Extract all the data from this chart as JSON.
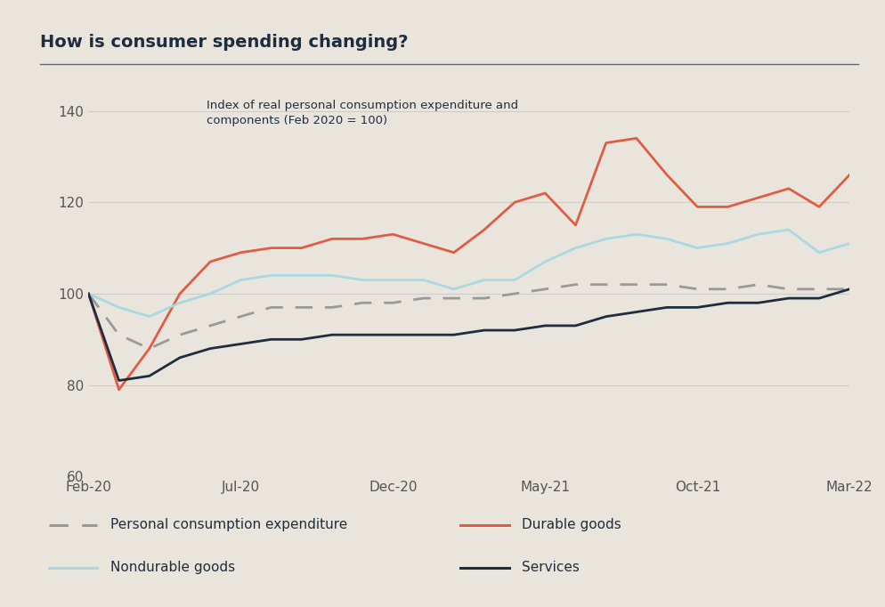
{
  "title": "How is consumer spending changing?",
  "subtitle": "Index of real personal consumption expenditure and\ncomponents (Feb 2020 = 100)",
  "background_color": "#eae5dc",
  "title_color": "#1e2d3d",
  "axis_label_color": "#1e2d3d",
  "tick_color": "#555555",
  "grid_color": "#cccccc",
  "separator_color": "#5a6a7a",
  "ylim": [
    60,
    145
  ],
  "yticks": [
    60,
    80,
    100,
    120,
    140
  ],
  "x_labels": [
    "Feb-20",
    "Jul-20",
    "Dec-20",
    "May-21",
    "Oct-21",
    "Mar-22"
  ],
  "xtick_positions": [
    0,
    5,
    10,
    15,
    20,
    25
  ],
  "n_points": 26,
  "series": {
    "personal_consumption": {
      "label": "Personal consumption expenditure",
      "color": "#999999",
      "linestyle": "dashed",
      "linewidth": 2.0,
      "values": [
        100,
        91,
        88,
        91,
        93,
        95,
        97,
        97,
        97,
        98,
        98,
        99,
        99,
        99,
        100,
        101,
        102,
        102,
        102,
        102,
        101,
        101,
        102,
        101,
        101,
        101
      ]
    },
    "durable_goods": {
      "label": "Durable goods",
      "color": "#e05c45",
      "linestyle": "solid",
      "linewidth": 2.0,
      "values": [
        100,
        79,
        88,
        100,
        107,
        109,
        110,
        110,
        112,
        112,
        113,
        111,
        109,
        114,
        120,
        122,
        115,
        133,
        134,
        126,
        119,
        119,
        121,
        123,
        119,
        126
      ]
    },
    "nondurable_goods": {
      "label": "Nondurable goods",
      "color": "#a8d8e0",
      "linestyle": "solid",
      "linewidth": 2.0,
      "values": [
        100,
        97,
        95,
        98,
        100,
        103,
        104,
        104,
        104,
        103,
        103,
        103,
        101,
        103,
        103,
        107,
        110,
        112,
        113,
        112,
        110,
        111,
        113,
        114,
        109,
        111
      ]
    },
    "services": {
      "label": "Services",
      "color": "#1e2d3d",
      "linestyle": "solid",
      "linewidth": 2.0,
      "values": [
        100,
        81,
        82,
        86,
        88,
        89,
        90,
        90,
        91,
        91,
        91,
        91,
        91,
        92,
        92,
        93,
        93,
        95,
        96,
        97,
        97,
        98,
        98,
        99,
        99,
        101
      ]
    }
  },
  "legend_items": [
    {
      "label": "Personal consumption expenditure",
      "color": "#999999",
      "ls": "dashed"
    },
    {
      "label": "Durable goods",
      "color": "#e05c45",
      "ls": "solid"
    },
    {
      "label": "Nondurable goods",
      "color": "#a8d8e0",
      "ls": "solid"
    },
    {
      "label": "Services",
      "color": "#1e2d3d",
      "ls": "solid"
    }
  ]
}
